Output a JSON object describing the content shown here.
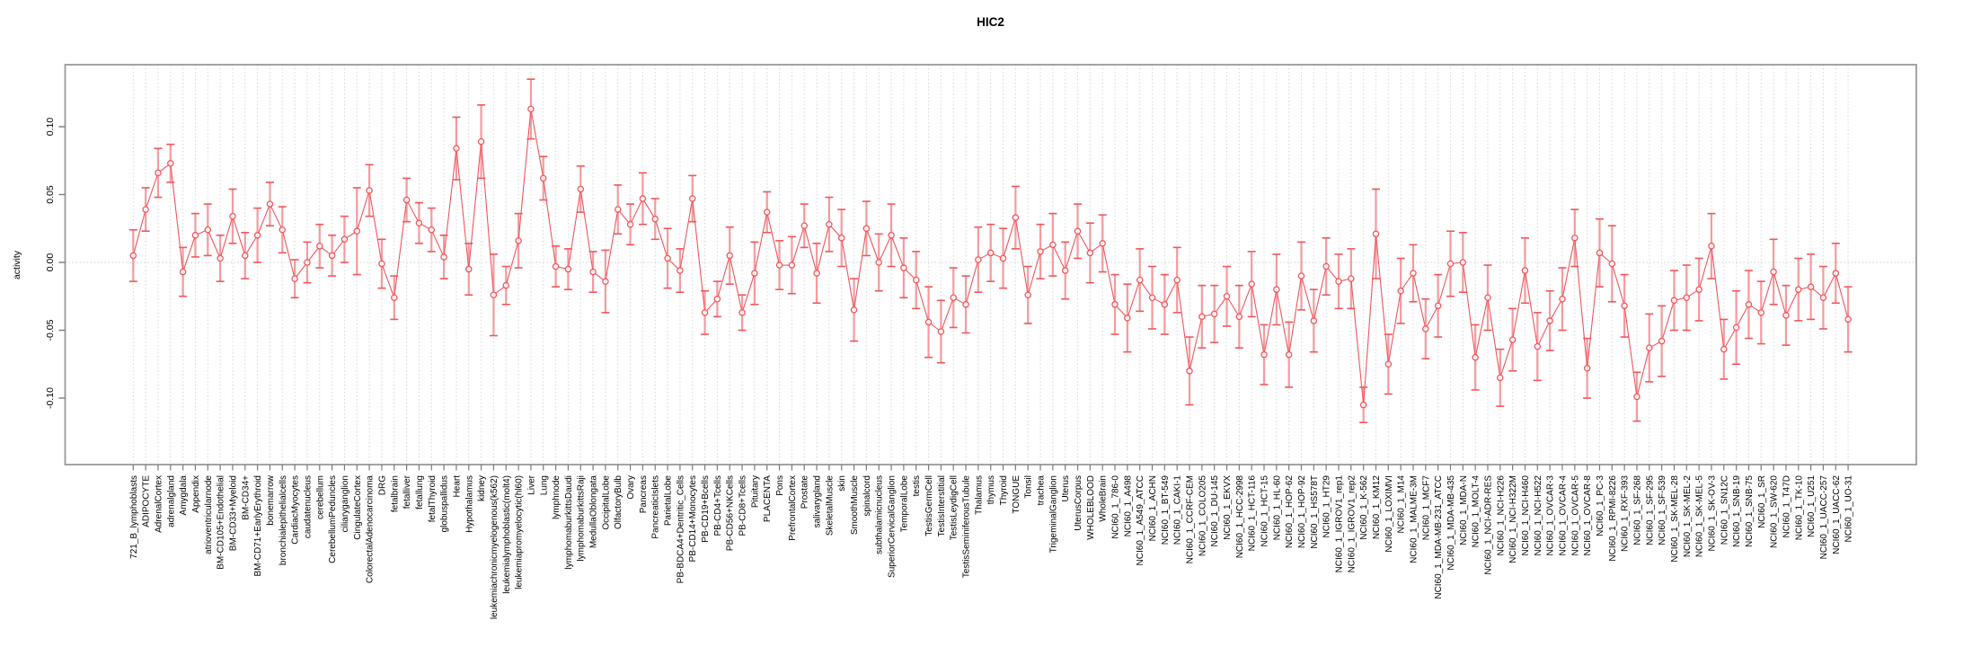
{
  "chart_data": {
    "type": "line",
    "title": "HIC2",
    "xlabel": "",
    "ylabel": "activity",
    "ylim": [
      -0.149,
      0.146
    ],
    "y_ticks": [
      0.1,
      0.05,
      0.0,
      -0.05,
      -0.1
    ],
    "y_tick_labels": [
      "0.10",
      "0.05",
      "0.00",
      "-0.05",
      "-0.10"
    ],
    "grid": "vertical dotted line per category; horizontal dotted line at y=0",
    "legend": "none",
    "point_style": "open circle with error bars, connected by line",
    "categories": [
      "721_B_lymphoblasts",
      "ADIPOCYTE",
      "AdrenalCortex",
      "adrenalgland",
      "Amygdala",
      "Appendix",
      "atrioventricularnode",
      "BM-CD105+Endothelial",
      "BM-CD33+Myeloid",
      "BM-CD34+",
      "BM-CD71+EarlyErythroid",
      "bonemarrow",
      "bronchialepithelialcells",
      "CardiacMyocytes",
      "caudatenucleus",
      "cerebellum",
      "CerebellumPeduncles",
      "ciliaryganglion",
      "CingulateCortex",
      "ColorectalAdenocarcinoma",
      "DRG",
      "fetalbrain",
      "fetalliver",
      "fetallung",
      "fetalThyroid",
      "globuspallidus",
      "Heart",
      "Hypothalamus",
      "kidney",
      "leukemiachronicmyelogenous(k562)",
      "leukemialymphoblastic(molt4)",
      "leukemiapromyelocytic(hl60)",
      "Liver",
      "Lung",
      "lymphnode",
      "lymphomaburkittsDaudi",
      "lymphomaburkittsRaji",
      "MedullaOblongata",
      "OccipitalLobe",
      "OlfactoryBulb",
      "Ovary",
      "Pancreas",
      "PancreaticIslets",
      "ParietalLobe",
      "PB-BDCA4+Dentritic_Cells",
      "PB-CD14+Monocytes",
      "PB-CD19+Bcells",
      "PB-CD4+Tcells",
      "PB-CD56+NKCells",
      "PB-CD8+Tcells",
      "Pituitary",
      "PLACENTA",
      "Pons",
      "PrefrontalCortex",
      "Prostate",
      "salivarygland",
      "SkeletalMuscle",
      "skin",
      "SmoothMuscle",
      "spinalcord",
      "subthalamicnucleus",
      "SuperiorCervicalGanglion",
      "TemporalLobe",
      "testis",
      "TestisGermCell",
      "TestisInterstitial",
      "TestisLeydigCell",
      "TestisSeminiferousTubule",
      "Thalamus",
      "thymus",
      "Thyroid",
      "TONGUE",
      "Tonsil",
      "trachea",
      "TrigeminalGanglion",
      "Uterus",
      "UterusCorpus",
      "WHOLEBLOOD",
      "WholeBrain",
      "NCI60_1_786-0",
      "NCI60_1_A498",
      "NCI60_1_A549_ATCC",
      "NCI60_1_ACHN",
      "NCI60_1_BT-549",
      "NCI60_1_CAKI-1",
      "NCI60_1_CCRF-CEM",
      "NCI60_1_COLO205",
      "NCI60_1_DU-145",
      "NCI60_1_EKVX",
      "NCI60_1_HCC-2998",
      "NCI60_1_HCT-116",
      "NCI60_1_HCT-15",
      "NCI60_1_HL-60",
      "NCI60_1_HOP-62",
      "NCI60_1_HOP-92",
      "NCI60_1_HS578T",
      "NCI60_1_HT29",
      "NCI60_1_IGROV1_rep1",
      "NCI60_1_IGROV1_rep2",
      "NCI60_1_K-562",
      "NCI60_1_KM12",
      "NCI60_1_LOXIMVI",
      "NCI60_1_M14",
      "NCI60_1_MALME-3M",
      "NCI60_1_MCF7",
      "NCI60_1_MDA-MB-231_ATCC",
      "NCI60_1_MDA-MB-435",
      "NCI60_1_MDA-N",
      "NCI60_1_MOLT-4",
      "NCI60_1_NCI-ADR-RES",
      "NCI60_1_NCI-H226",
      "NCI60_1_NCI-H322M",
      "NCI60_1_NCI-H460",
      "NCI60_1_NCI-H522",
      "NCI60_1_OVCAR-3",
      "NCI60_1_OVCAR-4",
      "NCI60_1_OVCAR-5",
      "NCI60_1_OVCAR-8",
      "NCI60_1_PC-3",
      "NCI60_1_RPMI-8226",
      "NCI60_1_RXF-393",
      "NCI60_1_SF-268",
      "NCI60_1_SF-295",
      "NCI60_1_SF-539",
      "NCI60_1_SK-MEL-28",
      "NCI60_1_SK-MEL-2",
      "NCI60_1_SK-MEL-5",
      "NCI60_1_SK-OV-3",
      "NCI60_1_SN12C",
      "NCI60_1_SNB-19",
      "NCI60_1_SNB-75",
      "NCI60_1_SR",
      "NCI60_1_SW-620",
      "NCI60_1_T47D",
      "NCI60_1_TK-10",
      "NCI60_1_U251",
      "NCI60_1_UACC-257",
      "NCI60_1_UACC-62",
      "NCI60_1_UO-31"
    ],
    "values": [
      0.005,
      0.039,
      0.066,
      0.073,
      -0.007,
      0.02,
      0.024,
      0.003,
      0.034,
      0.005,
      0.02,
      0.043,
      0.024,
      -0.012,
      0.0,
      0.012,
      0.005,
      0.017,
      0.023,
      0.053,
      -0.001,
      -0.026,
      0.046,
      0.029,
      0.024,
      0.004,
      0.084,
      -0.005,
      0.089,
      -0.024,
      -0.017,
      0.016,
      0.113,
      0.062,
      -0.003,
      -0.005,
      0.054,
      -0.007,
      -0.014,
      0.039,
      0.028,
      0.047,
      0.032,
      0.003,
      -0.006,
      0.047,
      -0.037,
      -0.027,
      0.005,
      -0.037,
      -0.008,
      0.037,
      -0.002,
      -0.002,
      0.027,
      -0.008,
      0.028,
      0.018,
      -0.035,
      0.025,
      0.0,
      0.02,
      -0.004,
      -0.013,
      -0.044,
      -0.051,
      -0.026,
      -0.031,
      0.002,
      0.007,
      0.003,
      0.033,
      -0.024,
      0.008,
      0.013,
      -0.006,
      0.023,
      0.007,
      0.014,
      -0.031,
      -0.041,
      -0.013,
      -0.026,
      -0.031,
      -0.013,
      -0.08,
      -0.04,
      -0.038,
      -0.025,
      -0.04,
      -0.016,
      -0.068,
      -0.02,
      -0.068,
      -0.01,
      -0.043,
      -0.003,
      -0.014,
      -0.012,
      -0.105,
      0.021,
      -0.075,
      -0.021,
      -0.008,
      -0.049,
      -0.032,
      -0.001,
      0.0,
      -0.07,
      -0.026,
      -0.085,
      -0.057,
      -0.006,
      -0.062,
      -0.043,
      -0.027,
      0.018,
      -0.078,
      0.007,
      -0.001,
      -0.032,
      -0.099,
      -0.063,
      -0.058,
      -0.028,
      -0.026,
      -0.02,
      0.012,
      -0.064,
      -0.048,
      -0.031,
      -0.037,
      -0.007,
      -0.039,
      -0.02,
      -0.018,
      -0.026,
      -0.008,
      -0.042
    ],
    "errors": [
      0.019,
      0.016,
      0.018,
      0.014,
      0.018,
      0.016,
      0.019,
      0.017,
      0.02,
      0.017,
      0.02,
      0.016,
      0.017,
      0.014,
      0.015,
      0.016,
      0.015,
      0.017,
      0.032,
      0.019,
      0.018,
      0.016,
      0.016,
      0.015,
      0.016,
      0.016,
      0.023,
      0.019,
      0.027,
      0.03,
      0.014,
      0.02,
      0.022,
      0.016,
      0.015,
      0.015,
      0.017,
      0.015,
      0.023,
      0.018,
      0.015,
      0.019,
      0.015,
      0.022,
      0.016,
      0.017,
      0.016,
      0.013,
      0.021,
      0.013,
      0.023,
      0.015,
      0.018,
      0.021,
      0.016,
      0.022,
      0.02,
      0.021,
      0.023,
      0.02,
      0.021,
      0.023,
      0.022,
      0.021,
      0.026,
      0.023,
      0.022,
      0.021,
      0.024,
      0.021,
      0.022,
      0.023,
      0.021,
      0.02,
      0.023,
      0.021,
      0.02,
      0.022,
      0.021,
      0.022,
      0.025,
      0.023,
      0.023,
      0.022,
      0.024,
      0.025,
      0.023,
      0.021,
      0.022,
      0.023,
      0.024,
      0.022,
      0.026,
      0.024,
      0.025,
      0.023,
      0.021,
      0.02,
      0.022,
      0.013,
      0.033,
      0.022,
      0.024,
      0.021,
      0.022,
      0.023,
      0.024,
      0.022,
      0.024,
      0.024,
      0.021,
      0.023,
      0.024,
      0.025,
      0.022,
      0.023,
      0.021,
      0.022,
      0.025,
      0.028,
      0.023,
      0.018,
      0.025,
      0.026,
      0.022,
      0.024,
      0.023,
      0.024,
      0.022,
      0.027,
      0.025,
      0.023,
      0.024,
      0.022,
      0.023,
      0.024,
      0.023,
      0.022,
      0.024
    ]
  },
  "colors": {
    "series": "#ef565c",
    "error_bar": "#f59a9e",
    "grid": "#d8d8d8",
    "zero_line": "#d0d0d0",
    "axis": "#7a7a7a",
    "box": "#9a9a9a",
    "text": "#000000"
  }
}
